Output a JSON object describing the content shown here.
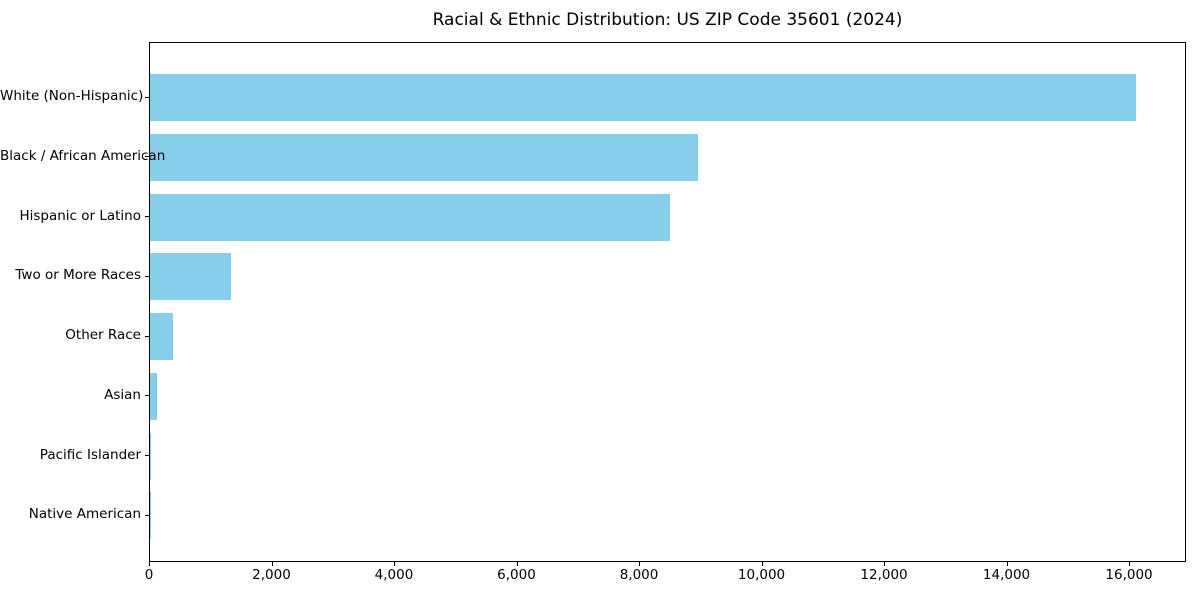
{
  "chart_data": {
    "type": "bar",
    "orientation": "horizontal",
    "title": "Racial & Ethnic Distribution: US ZIP Code 35601 (2024)",
    "categories": [
      "White (Non-Hispanic)",
      "Black / African American",
      "Hispanic or Latino",
      "Two or More Races",
      "Other Race",
      "Asian",
      "Pacific Islander",
      "Native American"
    ],
    "values": [
      16100,
      8950,
      8490,
      1320,
      370,
      110,
      15,
      5
    ],
    "xlabel": "",
    "ylabel": "",
    "xlim": [
      0,
      16930
    ],
    "xticks": [
      0,
      2000,
      4000,
      6000,
      8000,
      10000,
      12000,
      14000,
      16000
    ],
    "xtick_labels": [
      "0",
      "2,000",
      "4,000",
      "6,000",
      "8,000",
      "10,000",
      "12,000",
      "14,000",
      "16,000"
    ],
    "bar_color": "#87CEEB",
    "axis_color": "#000000",
    "grid": false,
    "legend_position": "none"
  }
}
